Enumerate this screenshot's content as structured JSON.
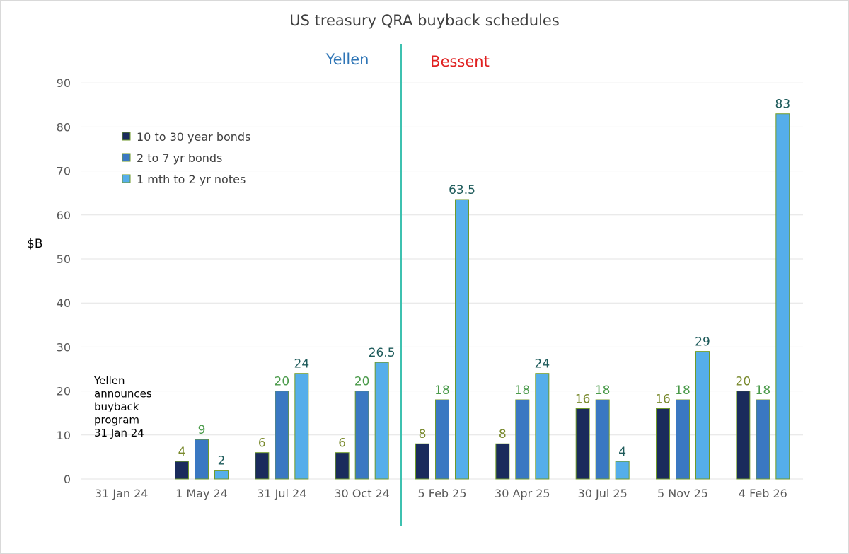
{
  "chart_data": {
    "type": "bar",
    "title": "US treasury QRA buyback schedules",
    "ylabel": "$B",
    "xlabel": "",
    "ylim": [
      0,
      90
    ],
    "yticks": [
      0,
      10,
      20,
      30,
      40,
      50,
      60,
      70,
      80,
      90
    ],
    "grid": true,
    "categories": [
      "31 Jan 24",
      "1 May 24",
      "31 Jul 24",
      "30 Oct 24",
      "5 Feb 25",
      "30 Apr 25",
      "30 Jul 25",
      "5 Nov 25",
      "4 Feb 26"
    ],
    "series": [
      {
        "name": "10 to 30 year bonds",
        "color": "#1a2b5c",
        "label_color": "#7a8a2e",
        "values": [
          null,
          4,
          6,
          6,
          8,
          8,
          16,
          16,
          20
        ],
        "labels": [
          "",
          "4",
          "6",
          "6",
          "8",
          "8",
          "16",
          "16",
          "20"
        ]
      },
      {
        "name": "2 to 7 yr bonds",
        "color": "#3a78c2",
        "label_color": "#4a9a4a",
        "values": [
          null,
          9,
          20,
          20,
          18,
          18,
          18,
          18,
          18
        ],
        "labels": [
          "",
          "9",
          "20",
          "20",
          "18",
          "18",
          "18",
          "18",
          "18"
        ]
      },
      {
        "name": "1 mth to 2 yr notes",
        "color": "#55aeea",
        "label_color": "#1d5a5a",
        "values": [
          null,
          2,
          24,
          26.5,
          63.5,
          24,
          4,
          29,
          83
        ],
        "labels": [
          "",
          "2",
          "24",
          "26.5",
          "63.5",
          "24",
          "4",
          "29",
          "83"
        ]
      }
    ],
    "bar_border_color": "#6f9a2a",
    "legend_position": "top-left",
    "annotations": {
      "era_left": {
        "text": "Yellen",
        "color": "#2e75b6"
      },
      "era_right": {
        "text": "Bessent",
        "color": "#e02020"
      },
      "divider_color": "#3ec1b0",
      "note_lines": [
        "Yellen",
        "announces",
        "buyback",
        "program",
        "31 Jan 24"
      ]
    }
  }
}
